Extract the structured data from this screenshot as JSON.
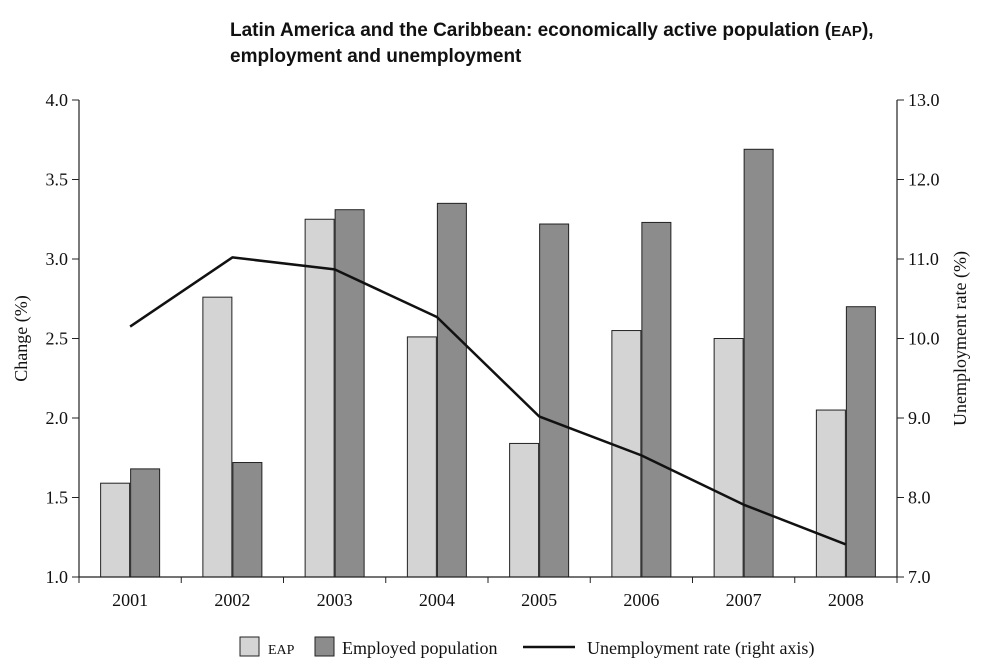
{
  "chart_data": {
    "type": "bar",
    "title_line1": "Latin America and the Caribbean: economically active population (",
    "title_abbr": "EAP",
    "title_line1_end": "),",
    "title_line2": "employment and unemployment",
    "categories": [
      "2001",
      "2002",
      "2003",
      "2004",
      "2005",
      "2006",
      "2007",
      "2008"
    ],
    "series": [
      {
        "name": "EAP",
        "axis": "left",
        "values": [
          1.59,
          2.76,
          3.25,
          2.51,
          1.84,
          2.55,
          2.5,
          2.05
        ],
        "color": "#d4d4d4"
      },
      {
        "name": "Employed population",
        "axis": "left",
        "values": [
          1.68,
          1.72,
          3.31,
          3.35,
          3.22,
          3.23,
          3.69,
          2.7
        ],
        "color": "#8c8c8c"
      },
      {
        "name": "Unemployment rate (right axis)",
        "axis": "right",
        "type": "line",
        "values": [
          10.15,
          11.02,
          10.87,
          10.27,
          9.02,
          8.53,
          7.91,
          7.41
        ],
        "color": "#111111"
      }
    ],
    "ylabel": "Change (%)",
    "y2label": "Unemployment rate (%)",
    "ylim": [
      1.0,
      4.0
    ],
    "y2lim": [
      7.0,
      13.0
    ],
    "yticks": [
      "1.0",
      "1.5",
      "2.0",
      "2.5",
      "3.0",
      "3.5",
      "4.0"
    ],
    "y2ticks": [
      "7.0",
      "8.0",
      "9.0",
      "10.0",
      "11.0",
      "12.0",
      "13.0"
    ],
    "grid": false,
    "legend_position": "bottom"
  }
}
